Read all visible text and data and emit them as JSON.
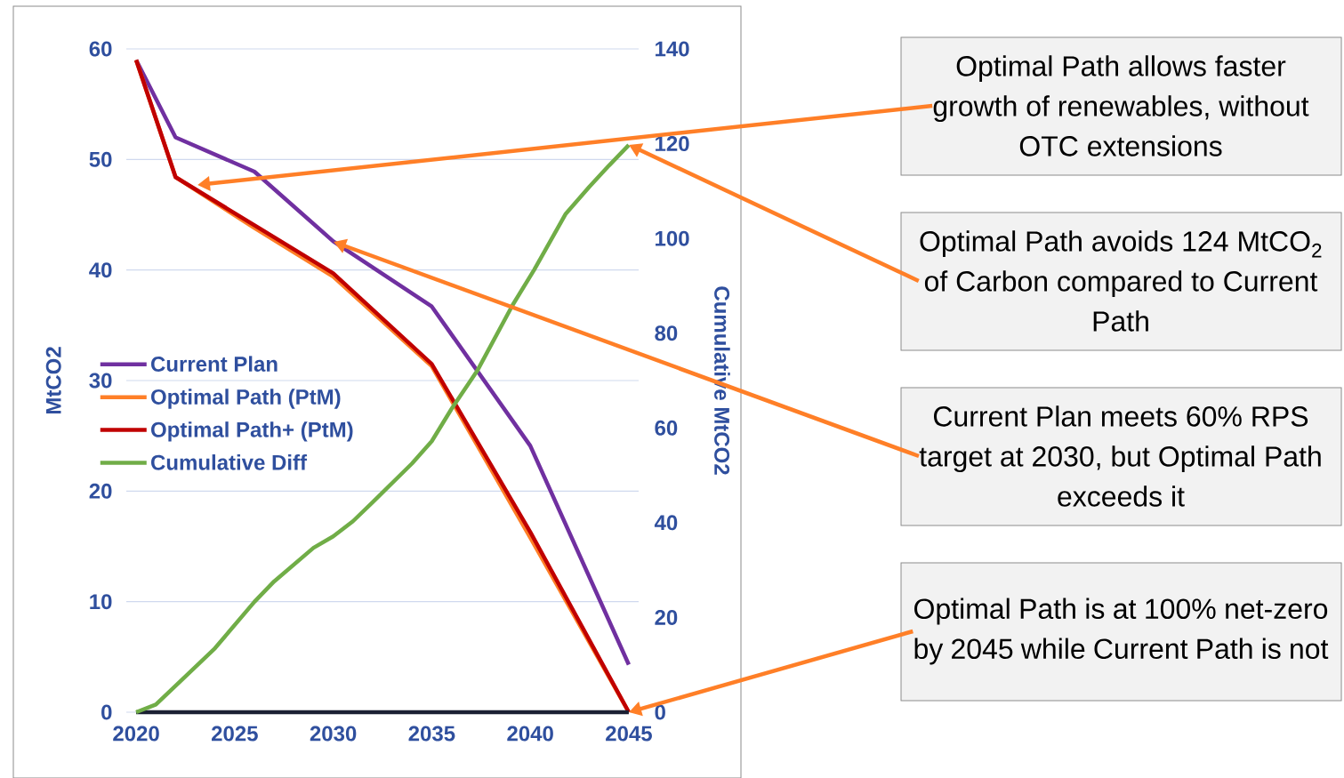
{
  "chart_data": {
    "type": "line",
    "ylabel": "MtCO2",
    "y2label": "Cumulative MtCO2",
    "xlim": [
      2019.5,
      2045.5
    ],
    "xticks": [
      2020,
      2025,
      2030,
      2035,
      2040,
      2045
    ],
    "ylim": [
      0,
      60
    ],
    "yticks": [
      0,
      10,
      20,
      30,
      40,
      50,
      60
    ],
    "y2lim": [
      0,
      140
    ],
    "y2ticks": [
      0,
      20,
      40,
      60,
      80,
      100,
      120,
      140
    ],
    "grid": "y",
    "legend": "left",
    "marker": "none",
    "line_style": "solid",
    "series": [
      {
        "name": "Current Plan",
        "color": "#7030a0",
        "x": [
          2020,
          2022,
          2026,
          2030,
          2035,
          2040,
          2045
        ],
        "values": [
          59,
          52,
          48.9,
          42.6,
          36.7,
          24.1,
          4.3
        ]
      },
      {
        "name": "Optimal Path (PtM)",
        "color": "#ff7f27",
        "x": [
          2020,
          2022,
          2026,
          2030,
          2035,
          2040,
          2045
        ],
        "values": [
          59,
          48.4,
          43.8,
          39.4,
          31.3,
          15.8,
          0
        ]
      },
      {
        "name": "Optimal Path+ (PtM)",
        "color": "#c00000",
        "x": [
          2020,
          2022,
          2030,
          2035,
          2040,
          2045
        ],
        "values": [
          59,
          48.4,
          39.7,
          31.5,
          16.3,
          0
        ]
      },
      {
        "name": "Cumulative Diff",
        "color": "#70ad47",
        "axis": "y2",
        "x": [
          2020,
          2021,
          2024,
          2026,
          2027,
          2029,
          2030,
          2031,
          2032,
          2034,
          2035,
          2036,
          2037.3,
          2039.1,
          2040.2,
          2041.8,
          2043,
          2044,
          2045
        ],
        "values": [
          0,
          1.6,
          13.5,
          23.3,
          27.6,
          34.7,
          37.1,
          40.3,
          44.3,
          52.5,
          57.2,
          64,
          72,
          85.9,
          93.4,
          105.2,
          110.9,
          115.4,
          119.7
        ]
      },
      {
        "color": "#1b2033",
        "x": [
          2020,
          2045
        ],
        "values": [
          0,
          0
        ]
      }
    ],
    "annotations": [
      "Optimal Path allows faster growth of renewables, without OTC extensions",
      "Optimal Path avoids 124 MtCO$_{2}$ of Carbon compared to Current Path",
      "Current Plan meets 60% RPS target at 2030, but Optimal Path exceeds it",
      "Optimal Path is at 100% net-zero by 2045 while Current Path is not"
    ]
  }
}
